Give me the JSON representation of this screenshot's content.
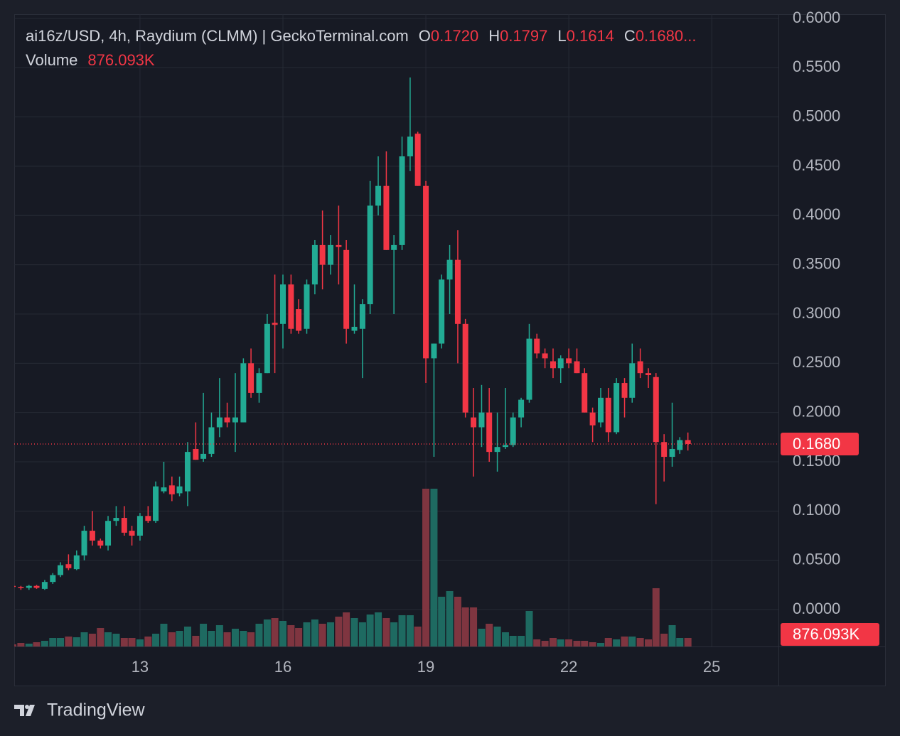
{
  "chart_data": {
    "type": "candlestick",
    "title": "ai16z/USD, 4h, Raydium (CLMM) | GeckoTerminal.com",
    "ohlc_names": {
      "open": "O",
      "high": "H",
      "low": "L",
      "close": "C"
    },
    "ohlc_labels": {
      "open": "0.1720",
      "high": "0.1797",
      "low": "0.1614",
      "close": "0.1680..."
    },
    "volume_name": "Volume",
    "last_volume_label": "876.093K",
    "last_price_label": "0.1680",
    "brand": "TradingView",
    "up_color": "#22ab94",
    "down_color": "#f23645",
    "up_volume_color": "#1e6a61",
    "down_volume_color": "#7f3540",
    "xlim": [
      10.36,
      26.4
    ],
    "xticks": [
      13,
      16,
      19,
      22,
      25
    ],
    "ylim": [
      -0.0375,
      0.6043
    ],
    "yticks": [
      {
        "value": 0,
        "label": "0.0000"
      },
      {
        "value": 0.05,
        "label": "0.0500"
      },
      {
        "value": 0.1,
        "label": "0.1000"
      },
      {
        "value": 0.15,
        "label": "0.1500"
      },
      {
        "value": 0.2,
        "label": "0.2000"
      },
      {
        "value": 0.25,
        "label": "0.2500"
      },
      {
        "value": 0.3,
        "label": "0.3000"
      },
      {
        "value": 0.35,
        "label": "0.3500"
      },
      {
        "value": 0.4,
        "label": "0.4000"
      },
      {
        "value": 0.45,
        "label": "0.4500"
      },
      {
        "value": 0.5,
        "label": "0.5000"
      },
      {
        "value": 0.55,
        "label": "0.5500"
      },
      {
        "value": 0.6,
        "label": "0.6000"
      }
    ],
    "volume_ylim": [
      0,
      17000000
    ],
    "grid": true,
    "x": [
      10.33,
      10.5,
      10.67,
      10.83,
      11,
      11.17,
      11.33,
      11.5,
      11.67,
      11.83,
      12,
      12.17,
      12.33,
      12.5,
      12.67,
      12.83,
      13,
      13.17,
      13.33,
      13.5,
      13.67,
      13.83,
      14,
      14.17,
      14.33,
      14.5,
      14.67,
      14.83,
      15,
      15.17,
      15.33,
      15.5,
      15.67,
      15.83,
      16,
      16.17,
      16.33,
      16.5,
      16.67,
      16.83,
      17,
      17.17,
      17.33,
      17.5,
      17.67,
      17.83,
      18,
      18.17,
      18.33,
      18.5,
      18.67,
      18.83,
      19,
      19.17,
      19.33,
      19.5,
      19.67,
      19.83,
      20,
      20.17,
      20.33,
      20.5,
      20.67,
      20.83,
      21,
      21.17,
      21.33,
      21.5,
      21.67,
      21.83,
      22,
      22.17,
      22.33,
      22.5,
      22.67,
      22.83,
      23,
      23.17,
      23.33,
      23.5,
      23.67,
      23.83,
      24,
      24.17,
      24.33,
      24.5
    ],
    "open": [
      0.024,
      0.023,
      0.022,
      0.024,
      0.021,
      0.028,
      0.035,
      0.046,
      0.041,
      0.055,
      0.08,
      0.07,
      0.065,
      0.09,
      0.093,
      0.08,
      0.075,
      0.095,
      0.09,
      0.12,
      0.126,
      0.118,
      0.12,
      0.163,
      0.153,
      0.158,
      0.185,
      0.195,
      0.19,
      0.19,
      0.25,
      0.22,
      0.24,
      0.291,
      0.29,
      0.33,
      0.305,
      0.285,
      0.33,
      0.37,
      0.35,
      0.37,
      0.365,
      0.283,
      0.285,
      0.31,
      0.41,
      0.43,
      0.365,
      0.37,
      0.46,
      0.483,
      0.43,
      0.255,
      0.27,
      0.335,
      0.355,
      0.29,
      0.195,
      0.185,
      0.2,
      0.16,
      0.165,
      0.167,
      0.195,
      0.213,
      0.275,
      0.26,
      0.252,
      0.245,
      0.255,
      0.252,
      0.24,
      0.2,
      0.19,
      0.215,
      0.18,
      0.23,
      0.215,
      0.252,
      0.24,
      0.236,
      0.17,
      0.155,
      0.162,
      0.172
    ],
    "high": [
      0.025,
      0.024,
      0.025,
      0.025,
      0.03,
      0.037,
      0.048,
      0.056,
      0.06,
      0.085,
      0.1,
      0.072,
      0.095,
      0.105,
      0.105,
      0.085,
      0.098,
      0.105,
      0.13,
      0.15,
      0.135,
      0.135,
      0.17,
      0.19,
      0.22,
      0.2,
      0.235,
      0.21,
      0.24,
      0.255,
      0.265,
      0.245,
      0.3,
      0.34,
      0.34,
      0.34,
      0.315,
      0.335,
      0.375,
      0.405,
      0.38,
      0.41,
      0.375,
      0.33,
      0.315,
      0.435,
      0.46,
      0.465,
      0.38,
      0.48,
      0.54,
      0.485,
      0.435,
      0.27,
      0.34,
      0.37,
      0.385,
      0.295,
      0.225,
      0.228,
      0.225,
      0.2,
      0.225,
      0.2,
      0.215,
      0.29,
      0.28,
      0.265,
      0.265,
      0.258,
      0.265,
      0.265,
      0.245,
      0.205,
      0.225,
      0.225,
      0.235,
      0.235,
      0.27,
      0.265,
      0.245,
      0.24,
      0.178,
      0.21,
      0.175,
      0.1797
    ],
    "low": [
      0.021,
      0.02,
      0.02,
      0.021,
      0.02,
      0.026,
      0.033,
      0.04,
      0.04,
      0.05,
      0.065,
      0.062,
      0.06,
      0.085,
      0.075,
      0.065,
      0.07,
      0.088,
      0.088,
      0.118,
      0.11,
      0.115,
      0.105,
      0.152,
      0.15,
      0.155,
      0.175,
      0.185,
      0.16,
      0.19,
      0.215,
      0.21,
      0.24,
      0.24,
      0.265,
      0.28,
      0.28,
      0.28,
      0.32,
      0.325,
      0.34,
      0.33,
      0.27,
      0.28,
      0.235,
      0.3,
      0.4,
      0.365,
      0.3,
      0.365,
      0.445,
      0.43,
      0.23,
      0.155,
      0.265,
      0.3,
      0.25,
      0.195,
      0.135,
      0.165,
      0.15,
      0.14,
      0.163,
      0.165,
      0.185,
      0.21,
      0.255,
      0.245,
      0.235,
      0.23,
      0.245,
      0.24,
      0.2,
      0.17,
      0.185,
      0.17,
      0.178,
      0.195,
      0.21,
      0.235,
      0.225,
      0.107,
      0.13,
      0.145,
      0.158,
      0.1614
    ],
    "close": [
      0.023,
      0.022,
      0.024,
      0.022,
      0.028,
      0.035,
      0.045,
      0.042,
      0.055,
      0.08,
      0.07,
      0.065,
      0.09,
      0.093,
      0.078,
      0.075,
      0.095,
      0.09,
      0.125,
      0.124,
      0.117,
      0.125,
      0.16,
      0.152,
      0.158,
      0.185,
      0.195,
      0.19,
      0.195,
      0.25,
      0.22,
      0.24,
      0.29,
      0.289,
      0.33,
      0.285,
      0.283,
      0.33,
      0.37,
      0.35,
      0.37,
      0.368,
      0.285,
      0.287,
      0.31,
      0.41,
      0.43,
      0.365,
      0.37,
      0.46,
      0.48,
      0.43,
      0.255,
      0.27,
      0.335,
      0.355,
      0.29,
      0.2,
      0.185,
      0.2,
      0.16,
      0.165,
      0.167,
      0.195,
      0.213,
      0.275,
      0.26,
      0.255,
      0.245,
      0.255,
      0.25,
      0.24,
      0.2,
      0.187,
      0.215,
      0.18,
      0.23,
      0.215,
      0.25,
      0.24,
      0.238,
      0.17,
      0.155,
      0.163,
      0.172,
      0.168
    ],
    "volume": [
      219000,
      365000,
      292000,
      438000,
      584000,
      876000,
      876000,
      1022000,
      949000,
      1460000,
      1314000,
      1898000,
      1460000,
      1314000,
      876000,
      876000,
      730000,
      1022000,
      1314000,
      2336000,
      1460000,
      1606000,
      2044000,
      1095000,
      2336000,
      1606000,
      2190000,
      1460000,
      1825000,
      1606000,
      1460000,
      2336000,
      2774000,
      2920000,
      2628000,
      2190000,
      1898000,
      2482000,
      2774000,
      2336000,
      2482000,
      3066000,
      3504000,
      2920000,
      2482000,
      3285000,
      3504000,
      2920000,
      2482000,
      3212000,
      3212000,
      2044000,
      16206000,
      16206000,
      5110000,
      5694000,
      5110000,
      4015000,
      4015000,
      1825000,
      2336000,
      2044000,
      1460000,
      1095000,
      1095000,
      3650000,
      730000,
      584000,
      876000,
      730000,
      730000,
      584000,
      584000,
      438000,
      365000,
      876000,
      730000,
      1022000,
      1022000,
      876000,
      730000,
      5986000,
      1314000,
      2190000,
      876000,
      876093
    ]
  }
}
